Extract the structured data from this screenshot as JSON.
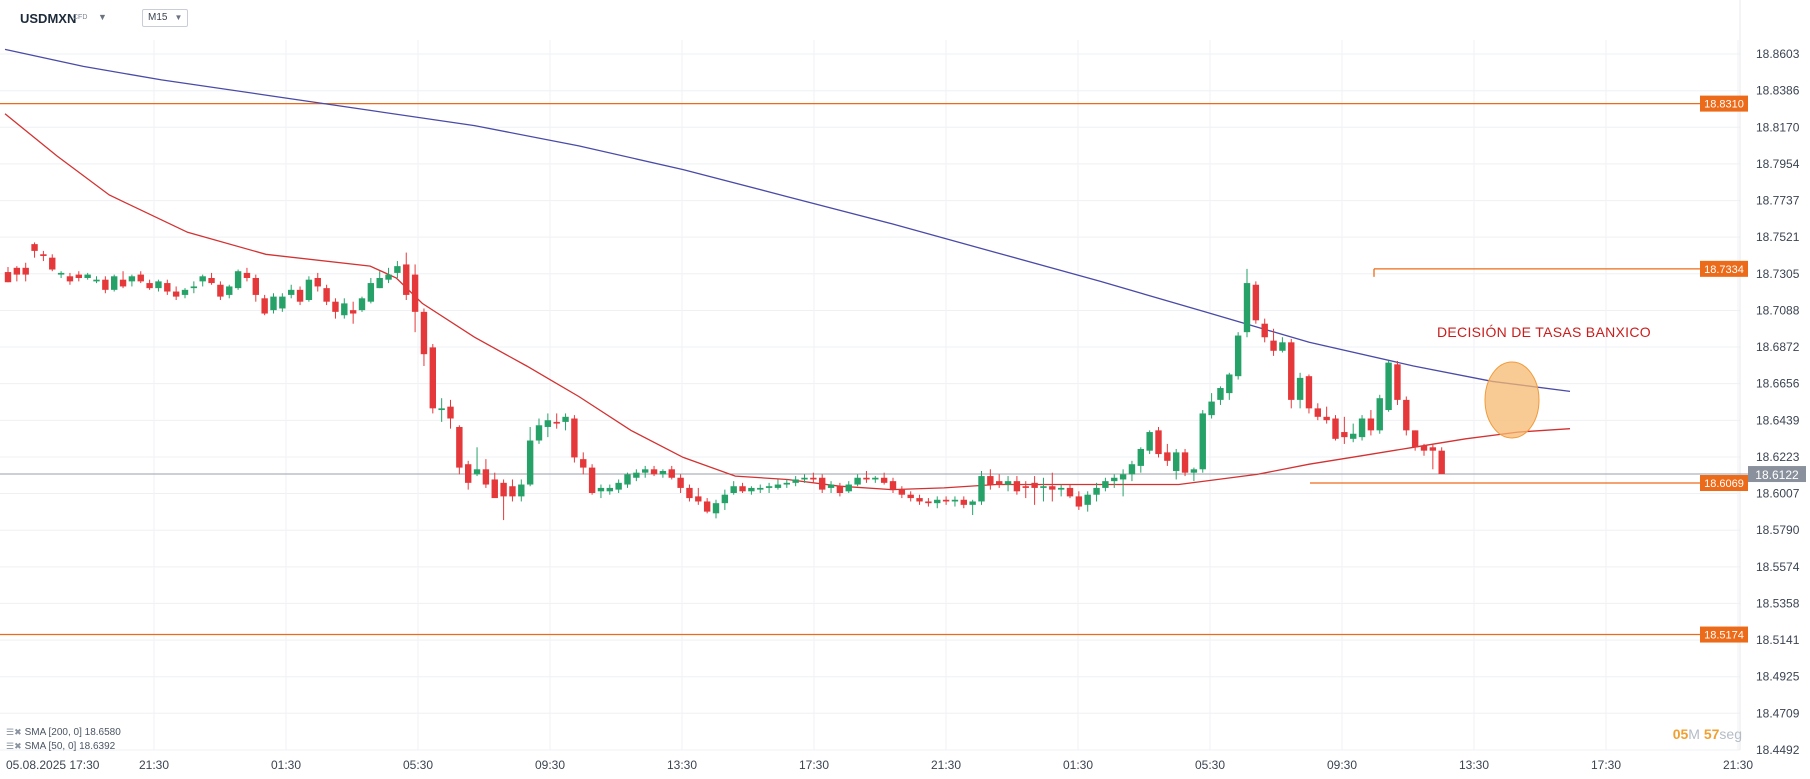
{
  "header": {
    "symbol": "USDMXN",
    "symbol_type": "CFD",
    "timeframe": "M15"
  },
  "legend": {
    "sma200": "SMA [200, 0] 18.6580",
    "sma50": "SMA [50, 0] 18.6392"
  },
  "timer": {
    "minutes": "05",
    "minutes_unit": "M",
    "seconds": "57",
    "seconds_unit": "seg"
  },
  "annotation": "DECISIÓN DE TASAS BANXICO",
  "colors": {
    "up": "#26a269",
    "down": "#e5383b",
    "sma200": "#4a4aa8",
    "sma50": "#d43131",
    "level": "#ec6b1a",
    "price_tag": "#8a919c"
  },
  "chart_data": {
    "type": "candlestick",
    "ylim": [
      18.4492,
      18.8603
    ],
    "y_ticks": [
      "18.8603",
      "18.8386",
      "18.8170",
      "18.7954",
      "18.7737",
      "18.7521",
      "18.7305",
      "18.7088",
      "18.6872",
      "18.6656",
      "18.6439",
      "18.6223",
      "18.6007",
      "18.5790",
      "18.5574",
      "18.5358",
      "18.5141",
      "18.4925",
      "18.4709",
      "18.4492"
    ],
    "x_ticks": [
      "05.08.2025  17:30",
      "21:30",
      "01:30",
      "05:30",
      "09:30",
      "13:30",
      "17:30",
      "21:30",
      "01:30",
      "05:30",
      "09:30",
      "13:30",
      "17:30",
      "21:30"
    ],
    "current_price": "18.6122",
    "levels": [
      {
        "label": "18.8310",
        "value": 18.831
      },
      {
        "label": "18.7334",
        "value": 18.7334
      },
      {
        "label": "18.6069",
        "value": 18.6069
      },
      {
        "label": "18.5174",
        "value": 18.5174
      }
    ],
    "sma200": [
      [
        0,
        18.863
      ],
      [
        3,
        18.853
      ],
      [
        6,
        18.845
      ],
      [
        10,
        18.836
      ],
      [
        14,
        18.827
      ],
      [
        18,
        18.818
      ],
      [
        22,
        18.806
      ],
      [
        26,
        18.792
      ],
      [
        30,
        18.776
      ],
      [
        34,
        18.76
      ],
      [
        38,
        18.743
      ],
      [
        42,
        18.726
      ],
      [
        46,
        18.708
      ],
      [
        50,
        18.69
      ],
      [
        54,
        18.676
      ],
      [
        57,
        18.667
      ],
      [
        60,
        18.661
      ]
    ],
    "sma50": [
      [
        0,
        18.825
      ],
      [
        2,
        18.8
      ],
      [
        4,
        18.777
      ],
      [
        7,
        18.755
      ],
      [
        10,
        18.742
      ],
      [
        14,
        18.735
      ],
      [
        15,
        18.728
      ],
      [
        16,
        18.713
      ],
      [
        18,
        18.693
      ],
      [
        20,
        18.676
      ],
      [
        22,
        18.658
      ],
      [
        24,
        18.638
      ],
      [
        26,
        18.622
      ],
      [
        28,
        18.611
      ],
      [
        30,
        18.609
      ],
      [
        32,
        18.605
      ],
      [
        34,
        18.603
      ],
      [
        36,
        18.604
      ],
      [
        38,
        18.606
      ],
      [
        40,
        18.606
      ],
      [
        44,
        18.606
      ],
      [
        45,
        18.606
      ],
      [
        46,
        18.608
      ],
      [
        48,
        18.612
      ],
      [
        50,
        18.618
      ],
      [
        52,
        18.623
      ],
      [
        54,
        18.628
      ],
      [
        56,
        18.633
      ],
      [
        58,
        18.637
      ],
      [
        60,
        18.639
      ]
    ],
    "candles": [
      {
        "o": 18.7315,
        "h": 18.7345,
        "l": 18.7255,
        "c": 18.7255
      },
      {
        "o": 18.734,
        "h": 18.735,
        "l": 18.726,
        "c": 18.73
      },
      {
        "o": 18.734,
        "h": 18.737,
        "l": 18.726,
        "c": 18.73
      },
      {
        "o": 18.748,
        "h": 18.749,
        "l": 18.74,
        "c": 18.744
      },
      {
        "o": 18.742,
        "h": 18.744,
        "l": 18.738,
        "c": 18.741
      },
      {
        "o": 18.74,
        "h": 18.742,
        "l": 18.732,
        "c": 18.733
      },
      {
        "o": 18.73,
        "h": 18.732,
        "l": 18.728,
        "c": 18.731
      },
      {
        "o": 18.729,
        "h": 18.731,
        "l": 18.724,
        "c": 18.726
      },
      {
        "o": 18.73,
        "h": 18.732,
        "l": 18.726,
        "c": 18.728
      },
      {
        "o": 18.728,
        "h": 18.731,
        "l": 18.727,
        "c": 18.73
      },
      {
        "o": 18.726,
        "h": 18.729,
        "l": 18.725,
        "c": 18.727
      },
      {
        "o": 18.727,
        "h": 18.729,
        "l": 18.719,
        "c": 18.721
      },
      {
        "o": 18.721,
        "h": 18.73,
        "l": 18.72,
        "c": 18.729
      },
      {
        "o": 18.727,
        "h": 18.732,
        "l": 18.722,
        "c": 18.723
      },
      {
        "o": 18.726,
        "h": 18.73,
        "l": 18.723,
        "c": 18.729
      },
      {
        "o": 18.73,
        "h": 18.732,
        "l": 18.725,
        "c": 18.726
      },
      {
        "o": 18.725,
        "h": 18.727,
        "l": 18.721,
        "c": 18.722
      },
      {
        "o": 18.722,
        "h": 18.727,
        "l": 18.72,
        "c": 18.726
      },
      {
        "o": 18.725,
        "h": 18.727,
        "l": 18.718,
        "c": 18.72
      },
      {
        "o": 18.72,
        "h": 18.723,
        "l": 18.715,
        "c": 18.717
      },
      {
        "o": 18.718,
        "h": 18.722,
        "l": 18.716,
        "c": 18.721
      },
      {
        "o": 18.722,
        "h": 18.726,
        "l": 18.719,
        "c": 18.723
      },
      {
        "o": 18.726,
        "h": 18.73,
        "l": 18.723,
        "c": 18.729
      },
      {
        "o": 18.728,
        "h": 18.731,
        "l": 18.724,
        "c": 18.725
      },
      {
        "o": 18.724,
        "h": 18.726,
        "l": 18.715,
        "c": 18.717
      },
      {
        "o": 18.718,
        "h": 18.724,
        "l": 18.716,
        "c": 18.723
      },
      {
        "o": 18.722,
        "h": 18.733,
        "l": 18.721,
        "c": 18.732
      },
      {
        "o": 18.731,
        "h": 18.734,
        "l": 18.726,
        "c": 18.728
      },
      {
        "o": 18.728,
        "h": 18.73,
        "l": 18.714,
        "c": 18.718
      },
      {
        "o": 18.716,
        "h": 18.718,
        "l": 18.706,
        "c": 18.707
      },
      {
        "o": 18.709,
        "h": 18.719,
        "l": 18.707,
        "c": 18.717
      },
      {
        "o": 18.71,
        "h": 18.719,
        "l": 18.708,
        "c": 18.717
      },
      {
        "o": 18.718,
        "h": 18.724,
        "l": 18.716,
        "c": 18.721
      },
      {
        "o": 18.721,
        "h": 18.723,
        "l": 18.712,
        "c": 18.714
      },
      {
        "o": 18.715,
        "h": 18.729,
        "l": 18.714,
        "c": 18.727
      },
      {
        "o": 18.728,
        "h": 18.731,
        "l": 18.72,
        "c": 18.723
      },
      {
        "o": 18.722,
        "h": 18.724,
        "l": 18.712,
        "c": 18.714
      },
      {
        "o": 18.714,
        "h": 18.716,
        "l": 18.704,
        "c": 18.708
      },
      {
        "o": 18.706,
        "h": 18.716,
        "l": 18.704,
        "c": 18.713
      },
      {
        "o": 18.709,
        "h": 18.714,
        "l": 18.701,
        "c": 18.707
      },
      {
        "o": 18.709,
        "h": 18.717,
        "l": 18.708,
        "c": 18.716
      },
      {
        "o": 18.714,
        "h": 18.728,
        "l": 18.713,
        "c": 18.725
      },
      {
        "o": 18.722,
        "h": 18.732,
        "l": 18.722,
        "c": 18.728
      },
      {
        "o": 18.727,
        "h": 18.734,
        "l": 18.725,
        "c": 18.73
      },
      {
        "o": 18.731,
        "h": 18.738,
        "l": 18.728,
        "c": 18.735
      },
      {
        "o": 18.736,
        "h": 18.743,
        "l": 18.715,
        "c": 18.718
      },
      {
        "o": 18.73,
        "h": 18.736,
        "l": 18.696,
        "c": 18.708
      },
      {
        "o": 18.708,
        "h": 18.71,
        "l": 18.676,
        "c": 18.683
      },
      {
        "o": 18.687,
        "h": 18.689,
        "l": 18.648,
        "c": 18.651
      },
      {
        "o": 18.65,
        "h": 18.657,
        "l": 18.643,
        "c": 18.651
      },
      {
        "o": 18.652,
        "h": 18.656,
        "l": 18.639,
        "c": 18.645
      },
      {
        "o": 18.64,
        "h": 18.641,
        "l": 18.612,
        "c": 18.616
      },
      {
        "o": 18.618,
        "h": 18.62,
        "l": 18.603,
        "c": 18.607
      },
      {
        "o": 18.612,
        "h": 18.628,
        "l": 18.611,
        "c": 18.615
      },
      {
        "o": 18.615,
        "h": 18.621,
        "l": 18.604,
        "c": 18.606
      },
      {
        "o": 18.609,
        "h": 18.613,
        "l": 18.599,
        "c": 18.598
      },
      {
        "o": 18.607,
        "h": 18.609,
        "l": 18.585,
        "c": 18.599
      },
      {
        "o": 18.605,
        "h": 18.609,
        "l": 18.596,
        "c": 18.599
      },
      {
        "o": 18.599,
        "h": 18.609,
        "l": 18.596,
        "c": 18.606
      },
      {
        "o": 18.606,
        "h": 18.64,
        "l": 18.605,
        "c": 18.632
      },
      {
        "o": 18.632,
        "h": 18.645,
        "l": 18.63,
        "c": 18.641
      },
      {
        "o": 18.64,
        "h": 18.648,
        "l": 18.634,
        "c": 18.644
      },
      {
        "o": 18.643,
        "h": 18.648,
        "l": 18.639,
        "c": 18.642
      },
      {
        "o": 18.643,
        "h": 18.648,
        "l": 18.638,
        "c": 18.646
      },
      {
        "o": 18.645,
        "h": 18.647,
        "l": 18.619,
        "c": 18.622
      },
      {
        "o": 18.621,
        "h": 18.625,
        "l": 18.612,
        "c": 18.616
      },
      {
        "o": 18.616,
        "h": 18.618,
        "l": 18.6,
        "c": 18.601
      },
      {
        "o": 18.602,
        "h": 18.606,
        "l": 18.598,
        "c": 18.604
      },
      {
        "o": 18.602,
        "h": 18.606,
        "l": 18.6,
        "c": 18.604
      },
      {
        "o": 18.603,
        "h": 18.609,
        "l": 18.601,
        "c": 18.607
      },
      {
        "o": 18.606,
        "h": 18.613,
        "l": 18.604,
        "c": 18.612
      },
      {
        "o": 18.61,
        "h": 18.615,
        "l": 18.608,
        "c": 18.613
      },
      {
        "o": 18.613,
        "h": 18.617,
        "l": 18.61,
        "c": 18.615
      },
      {
        "o": 18.615,
        "h": 18.617,
        "l": 18.611,
        "c": 18.612
      },
      {
        "o": 18.612,
        "h": 18.615,
        "l": 18.61,
        "c": 18.614
      },
      {
        "o": 18.615,
        "h": 18.617,
        "l": 18.609,
        "c": 18.61
      },
      {
        "o": 18.61,
        "h": 18.612,
        "l": 18.601,
        "c": 18.604
      },
      {
        "o": 18.604,
        "h": 18.606,
        "l": 18.596,
        "c": 18.598
      },
      {
        "o": 18.599,
        "h": 18.604,
        "l": 18.594,
        "c": 18.596
      },
      {
        "o": 18.596,
        "h": 18.598,
        "l": 18.589,
        "c": 18.59
      },
      {
        "o": 18.589,
        "h": 18.597,
        "l": 18.586,
        "c": 18.595
      },
      {
        "o": 18.595,
        "h": 18.603,
        "l": 18.591,
        "c": 18.6
      },
      {
        "o": 18.601,
        "h": 18.608,
        "l": 18.6,
        "c": 18.605
      },
      {
        "o": 18.605,
        "h": 18.607,
        "l": 18.601,
        "c": 18.602
      },
      {
        "o": 18.602,
        "h": 18.605,
        "l": 18.6,
        "c": 18.604
      },
      {
        "o": 18.603,
        "h": 18.606,
        "l": 18.601,
        "c": 18.604
      },
      {
        "o": 18.604,
        "h": 18.607,
        "l": 18.601,
        "c": 18.605
      },
      {
        "o": 18.604,
        "h": 18.609,
        "l": 18.603,
        "c": 18.606
      },
      {
        "o": 18.606,
        "h": 18.609,
        "l": 18.604,
        "c": 18.607
      },
      {
        "o": 18.607,
        "h": 18.611,
        "l": 18.605,
        "c": 18.609
      },
      {
        "o": 18.609,
        "h": 18.612,
        "l": 18.607,
        "c": 18.61
      },
      {
        "o": 18.61,
        "h": 18.613,
        "l": 18.607,
        "c": 18.609
      },
      {
        "o": 18.61,
        "h": 18.612,
        "l": 18.601,
        "c": 18.603
      },
      {
        "o": 18.604,
        "h": 18.608,
        "l": 18.601,
        "c": 18.606
      },
      {
        "o": 18.605,
        "h": 18.607,
        "l": 18.599,
        "c": 18.601
      },
      {
        "o": 18.602,
        "h": 18.608,
        "l": 18.601,
        "c": 18.606
      },
      {
        "o": 18.606,
        "h": 18.612,
        "l": 18.605,
        "c": 18.61
      },
      {
        "o": 18.61,
        "h": 18.614,
        "l": 18.607,
        "c": 18.609
      },
      {
        "o": 18.609,
        "h": 18.611,
        "l": 18.607,
        "c": 18.61
      },
      {
        "o": 18.61,
        "h": 18.613,
        "l": 18.606,
        "c": 18.607
      },
      {
        "o": 18.608,
        "h": 18.61,
        "l": 18.601,
        "c": 18.603
      },
      {
        "o": 18.603,
        "h": 18.605,
        "l": 18.598,
        "c": 18.6
      },
      {
        "o": 18.6,
        "h": 18.602,
        "l": 18.596,
        "c": 18.598
      },
      {
        "o": 18.598,
        "h": 18.6,
        "l": 18.594,
        "c": 18.596
      },
      {
        "o": 18.596,
        "h": 18.598,
        "l": 18.593,
        "c": 18.595
      },
      {
        "o": 18.595,
        "h": 18.599,
        "l": 18.592,
        "c": 18.597
      },
      {
        "o": 18.597,
        "h": 18.599,
        "l": 18.594,
        "c": 18.596
      },
      {
        "o": 18.596,
        "h": 18.599,
        "l": 18.593,
        "c": 18.597
      },
      {
        "o": 18.597,
        "h": 18.599,
        "l": 18.592,
        "c": 18.594
      },
      {
        "o": 18.594,
        "h": 18.597,
        "l": 18.588,
        "c": 18.596
      },
      {
        "o": 18.596,
        "h": 18.614,
        "l": 18.594,
        "c": 18.611
      },
      {
        "o": 18.611,
        "h": 18.615,
        "l": 18.603,
        "c": 18.606
      },
      {
        "o": 18.608,
        "h": 18.612,
        "l": 18.604,
        "c": 18.606
      },
      {
        "o": 18.606,
        "h": 18.611,
        "l": 18.602,
        "c": 18.608
      },
      {
        "o": 18.608,
        "h": 18.611,
        "l": 18.6,
        "c": 18.602
      },
      {
        "o": 18.605,
        "h": 18.608,
        "l": 18.598,
        "c": 18.604
      },
      {
        "o": 18.607,
        "h": 18.611,
        "l": 18.594,
        "c": 18.604
      },
      {
        "o": 18.604,
        "h": 18.61,
        "l": 18.596,
        "c": 18.605
      },
      {
        "o": 18.605,
        "h": 18.613,
        "l": 18.596,
        "c": 18.603
      },
      {
        "o": 18.603,
        "h": 18.606,
        "l": 18.599,
        "c": 18.604
      },
      {
        "o": 18.604,
        "h": 18.606,
        "l": 18.598,
        "c": 18.599
      },
      {
        "o": 18.599,
        "h": 18.602,
        "l": 18.591,
        "c": 18.593
      },
      {
        "o": 18.594,
        "h": 18.602,
        "l": 18.59,
        "c": 18.6
      },
      {
        "o": 18.6,
        "h": 18.607,
        "l": 18.596,
        "c": 18.604
      },
      {
        "o": 18.604,
        "h": 18.61,
        "l": 18.602,
        "c": 18.608
      },
      {
        "o": 18.608,
        "h": 18.612,
        "l": 18.604,
        "c": 18.61
      },
      {
        "o": 18.609,
        "h": 18.615,
        "l": 18.599,
        "c": 18.612
      },
      {
        "o": 18.612,
        "h": 18.62,
        "l": 18.608,
        "c": 18.618
      },
      {
        "o": 18.617,
        "h": 18.628,
        "l": 18.613,
        "c": 18.627
      },
      {
        "o": 18.626,
        "h": 18.638,
        "l": 18.624,
        "c": 18.637
      },
      {
        "o": 18.638,
        "h": 18.64,
        "l": 18.622,
        "c": 18.624
      },
      {
        "o": 18.625,
        "h": 18.63,
        "l": 18.617,
        "c": 18.62
      },
      {
        "o": 18.614,
        "h": 18.627,
        "l": 18.609,
        "c": 18.625
      },
      {
        "o": 18.625,
        "h": 18.627,
        "l": 18.611,
        "c": 18.613
      },
      {
        "o": 18.613,
        "h": 18.616,
        "l": 18.608,
        "c": 18.615
      },
      {
        "o": 18.615,
        "h": 18.65,
        "l": 18.613,
        "c": 18.648
      },
      {
        "o": 18.647,
        "h": 18.66,
        "l": 18.645,
        "c": 18.655
      },
      {
        "o": 18.656,
        "h": 18.664,
        "l": 18.653,
        "c": 18.663
      },
      {
        "o": 18.66,
        "h": 18.672,
        "l": 18.656,
        "c": 18.671
      },
      {
        "o": 18.67,
        "h": 18.696,
        "l": 18.668,
        "c": 18.694
      },
      {
        "o": 18.696,
        "h": 18.7334,
        "l": 18.693,
        "c": 18.725
      },
      {
        "o": 18.724,
        "h": 18.726,
        "l": 18.701,
        "c": 18.703
      },
      {
        "o": 18.701,
        "h": 18.704,
        "l": 18.69,
        "c": 18.693
      },
      {
        "o": 18.691,
        "h": 18.698,
        "l": 18.682,
        "c": 18.685
      },
      {
        "o": 18.685,
        "h": 18.693,
        "l": 18.684,
        "c": 18.69
      },
      {
        "o": 18.69,
        "h": 18.692,
        "l": 18.651,
        "c": 18.656
      },
      {
        "o": 18.656,
        "h": 18.672,
        "l": 18.651,
        "c": 18.669
      },
      {
        "o": 18.67,
        "h": 18.671,
        "l": 18.648,
        "c": 18.651
      },
      {
        "o": 18.651,
        "h": 18.654,
        "l": 18.644,
        "c": 18.646
      },
      {
        "o": 18.646,
        "h": 18.652,
        "l": 18.642,
        "c": 18.644
      },
      {
        "o": 18.645,
        "h": 18.647,
        "l": 18.632,
        "c": 18.633
      },
      {
        "o": 18.637,
        "h": 18.646,
        "l": 18.63,
        "c": 18.634
      },
      {
        "o": 18.633,
        "h": 18.642,
        "l": 18.631,
        "c": 18.636
      },
      {
        "o": 18.634,
        "h": 18.647,
        "l": 18.632,
        "c": 18.645
      },
      {
        "o": 18.645,
        "h": 18.65,
        "l": 18.635,
        "c": 18.638
      },
      {
        "o": 18.638,
        "h": 18.659,
        "l": 18.636,
        "c": 18.657
      },
      {
        "o": 18.65,
        "h": 18.679,
        "l": 18.649,
        "c": 18.678
      },
      {
        "o": 18.677,
        "h": 18.679,
        "l": 18.653,
        "c": 18.656
      },
      {
        "o": 18.656,
        "h": 18.658,
        "l": 18.635,
        "c": 18.638
      },
      {
        "o": 18.638,
        "h": 18.638,
        "l": 18.626,
        "c": 18.628
      },
      {
        "o": 18.629,
        "h": 18.63,
        "l": 18.623,
        "c": 18.626
      },
      {
        "o": 18.628,
        "h": 18.63,
        "l": 18.615,
        "c": 18.626
      },
      {
        "o": 18.626,
        "h": 18.628,
        "l": 18.6122,
        "c": 18.6122
      }
    ]
  }
}
